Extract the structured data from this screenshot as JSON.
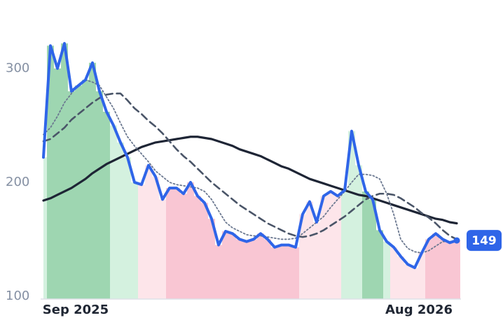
{
  "chart_data": {
    "type": "line",
    "categories": [
      null,
      null,
      null,
      null,
      null,
      "Sep 2025",
      null,
      null,
      null,
      null,
      null,
      null,
      null,
      null,
      null,
      null,
      null,
      null,
      null,
      null,
      null,
      null,
      null,
      null,
      null,
      null,
      null,
      null,
      null,
      null,
      null,
      null,
      null,
      null,
      null,
      null,
      null,
      null,
      null,
      null,
      null,
      null,
      null,
      null,
      null,
      null,
      null,
      null,
      null,
      null,
      null,
      null,
      null,
      null,
      "Aug 2026",
      null,
      null,
      null,
      null,
      null
    ],
    "series": [
      {
        "color": "#2f65e8",
        "style": "solid",
        "width": 4,
        "values": [
          222,
          320,
          300,
          322,
          280,
          285,
          290,
          305,
          280,
          262,
          250,
          235,
          222,
          200,
          198,
          215,
          205,
          185,
          195,
          195,
          190,
          200,
          188,
          182,
          168,
          145,
          157,
          155,
          150,
          148,
          150,
          155,
          150,
          143,
          145,
          145,
          143,
          172,
          183,
          165,
          188,
          192,
          188,
          193,
          245,
          215,
          192,
          185,
          158,
          148,
          143,
          135,
          128,
          125,
          138,
          150,
          155,
          150,
          147,
          149
        ]
      },
      {
        "color": "#6b7890",
        "style": "dotted",
        "width": 1.8,
        "values": [
          242,
          248,
          258,
          270,
          278,
          286,
          290,
          288,
          285,
          275,
          265,
          252,
          240,
          232,
          225,
          218,
          210,
          205,
          200,
          198,
          197,
          196,
          195,
          192,
          185,
          175,
          165,
          160,
          157,
          154,
          153,
          153,
          152,
          151,
          150,
          150,
          151,
          155,
          160,
          165,
          170,
          178,
          185,
          192,
          200,
          207,
          207,
          206,
          203,
          190,
          172,
          150,
          142,
          139,
          138,
          140,
          144,
          148,
          148,
          148
        ]
      },
      {
        "color": "#4a5568",
        "style": "dashed",
        "width": 2.6,
        "values": [
          236,
          238,
          243,
          248,
          255,
          260,
          265,
          270,
          274,
          277,
          278,
          278,
          272,
          265,
          260,
          254,
          249,
          243,
          236,
          229,
          223,
          218,
          212,
          206,
          200,
          195,
          190,
          185,
          180,
          176,
          172,
          168,
          164,
          161,
          158,
          155,
          153,
          152,
          153,
          155,
          158,
          162,
          166,
          170,
          175,
          180,
          185,
          188,
          190,
          190,
          189,
          186,
          182,
          178,
          173,
          169,
          164,
          158,
          153,
          150
        ]
      },
      {
        "color": "#1e2535",
        "style": "solid",
        "width": 3.2,
        "values": [
          184,
          186,
          189,
          192,
          195,
          199,
          203,
          208,
          212,
          216,
          219,
          222,
          225,
          228,
          231,
          233,
          235,
          236,
          237,
          238,
          239,
          240,
          240,
          239,
          238,
          236,
          234,
          232,
          229,
          227,
          225,
          223,
          220,
          217,
          214,
          212,
          209,
          206,
          203,
          201,
          199,
          197,
          195,
          193,
          191,
          189,
          188,
          186,
          184,
          182,
          180,
          178,
          176,
          174,
          172,
          170,
          168,
          167,
          165,
          164
        ]
      }
    ],
    "shading": [
      {
        "start": 0,
        "end": 1,
        "color": "#cdeed9"
      },
      {
        "start": 1,
        "end": 10,
        "color": "#8dcfa3"
      },
      {
        "start": 10,
        "end": 14,
        "color": "#cdeed9"
      },
      {
        "start": 14,
        "end": 18,
        "color": "#fde0e6"
      },
      {
        "start": 18,
        "end": 37,
        "color": "#f8bccb"
      },
      {
        "start": 37,
        "end": 43,
        "color": "#fde0e6"
      },
      {
        "start": 43,
        "end": 46,
        "color": "#cdeed9"
      },
      {
        "start": 46,
        "end": 49,
        "color": "#8dcfa3"
      },
      {
        "start": 49,
        "end": 50,
        "color": "#cdeed9"
      },
      {
        "start": 50,
        "end": 55,
        "color": "#fde0e6"
      },
      {
        "start": 55,
        "end": 60,
        "color": "#f8bccb"
      }
    ],
    "ylim": [
      97.5,
      332.5
    ],
    "yticks": [
      100,
      200,
      300
    ],
    "badge_color": "#2f65e8"
  }
}
